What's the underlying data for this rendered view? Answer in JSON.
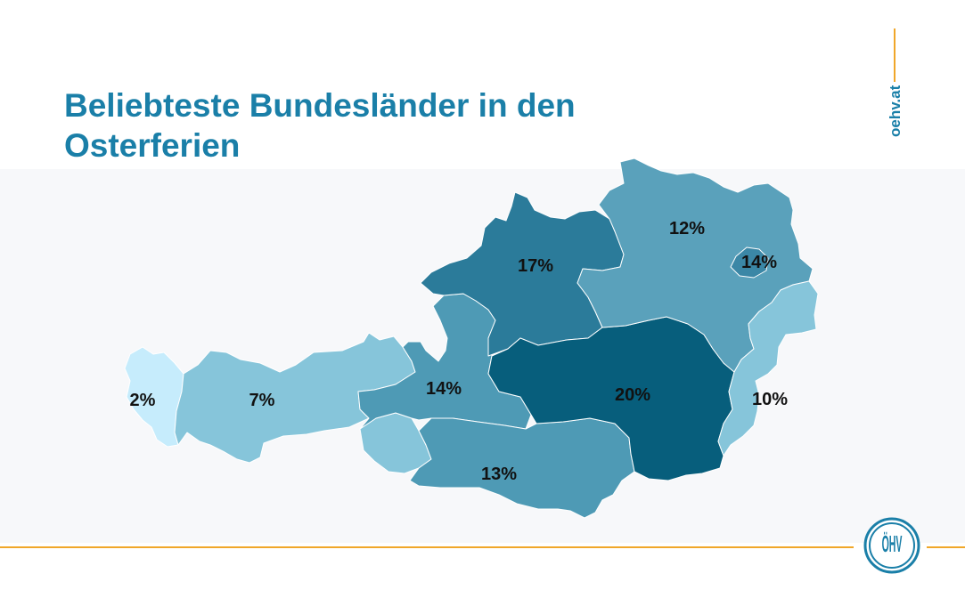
{
  "slide": {
    "title_line1": "Beliebteste Bundesländer in den",
    "title_line2": "Osterferien",
    "brand_text": "oehv.at",
    "logo_text": "ÖHV"
  },
  "colors": {
    "title": "#1a7fa8",
    "accent_line": "#f0a72a",
    "brand": "#1a7fa8"
  },
  "map": {
    "regions": [
      {
        "name": "Vorarlberg",
        "value": "2%",
        "color": "#c6ecfc"
      },
      {
        "name": "Tirol",
        "value": "7%",
        "color": "#86c5da"
      },
      {
        "name": "Osttirol",
        "value": "",
        "color": "#86c5da"
      },
      {
        "name": "Salzburg",
        "value": "14%",
        "color": "#4e9ab5"
      },
      {
        "name": "Kärnten",
        "value": "13%",
        "color": "#4e9ab5"
      },
      {
        "name": "Oberösterreich",
        "value": "17%",
        "color": "#2b7b9a"
      },
      {
        "name": "Steiermark",
        "value": "20%",
        "color": "#075e7c"
      },
      {
        "name": "Niederösterreich",
        "value": "12%",
        "color": "#5aa1bb"
      },
      {
        "name": "Wien",
        "value": "14%",
        "color": "#3b87a6"
      },
      {
        "name": "Burgenland",
        "value": "10%",
        "color": "#86c5da"
      }
    ]
  }
}
